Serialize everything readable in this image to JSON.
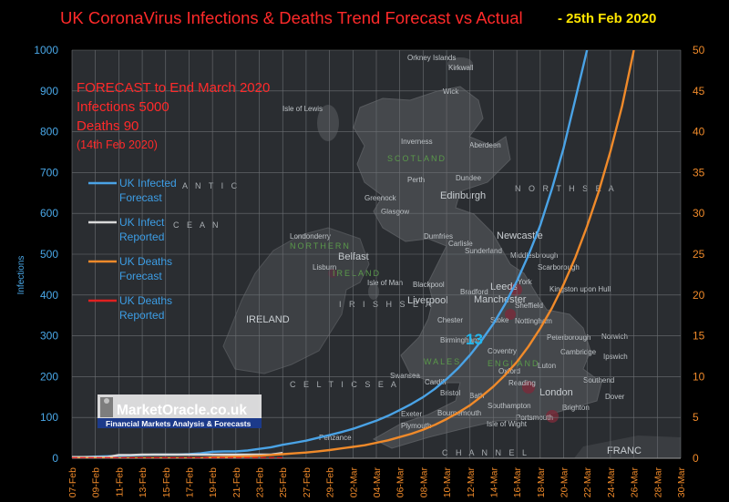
{
  "title": "UK CoronaVirus Infections & Deaths Trend Forecast vs Actual",
  "title_date": "- 25th Feb 2020",
  "forecast_box": {
    "heading": "FORECAST to End March 2020",
    "infections": "Infections  5000",
    "deaths": "Deaths 90",
    "date": "(14th Feb 2020)"
  },
  "logo": {
    "name": "MarketOracle.co.uk",
    "tagline": "Financial Markets Analysis & Forecasts"
  },
  "marker_label": "13",
  "map_labels": {
    "orkney": "Orkney Islands",
    "kirkwall": "Kirkwall",
    "wick": "Wick",
    "isle_of_lewis": "Isle of Lewis",
    "inverness": "Inverness",
    "aberdeen": "Aberdeen",
    "scotland": "SCOTLAND",
    "perth": "Perth",
    "dundee": "Dundee",
    "edinburgh": "Edinburgh",
    "greenock": "Greenock",
    "glasgow": "Glasgow",
    "north_sea": "N O R T H   S E A",
    "dumfries": "Dumfries",
    "carlisle": "Carlisle",
    "newcastle": "Newcastle",
    "sunderland": "Sunderland",
    "middlesbrough": "Middlesbrough",
    "londonderry": "Londonderry",
    "northern": "NORTHERN",
    "belfast": "Belfast",
    "lisburn": "Lisburn",
    "ireland_ni": "IRELAND",
    "scarborough": "Scarborough",
    "york": "York",
    "leeds": "Leeds",
    "bradford": "Bradford",
    "kingston": "Kingston upon Hull",
    "isle_of_man": "Isle of Man",
    "blackpool": "Blackpool",
    "manchester": "Manchester",
    "sheffield": "Sheffield",
    "irish_sea": "I R I S H  S E A",
    "liverpool": "Liverpool",
    "ireland": "IRELAND",
    "chester": "Chester",
    "stoke": "Stoke",
    "nottingham": "Nottingham",
    "norwich": "Norwich",
    "birmingham": "Birmingham",
    "peterborough": "Peterborough",
    "coventry": "Coventry",
    "cambridge": "Cambridge",
    "ipswich": "Ipswich",
    "wales": "WALES",
    "england": "ENGLAND",
    "luton": "Luton",
    "oxford": "Oxford",
    "swansea": "Swansea",
    "celtic_sea": "C E L T I C  S E A",
    "cardiff": "Cardiff",
    "bristol": "Bristol",
    "bath": "Bath",
    "reading": "Reading",
    "london": "London",
    "southend": "Southend",
    "dover": "Dover",
    "southampton": "Southampton",
    "exeter": "Exeter",
    "bournemouth": "Bournemouth",
    "brighton": "Brighton",
    "isle_of_wight": "Isle of Wight",
    "portsmouth": "Portsmouth",
    "plymouth": "Plymouth",
    "penzance": "Penzance",
    "channel": "C H A N N E L",
    "france": "FRANC",
    "atlantic": "A N T I C",
    "ocean": "C E A N"
  },
  "chart_data": {
    "type": "line",
    "x": [
      "07-Feb",
      "08-Feb",
      "09-Feb",
      "10-Feb",
      "11-Feb",
      "12-Feb",
      "13-Feb",
      "14-Feb",
      "15-Feb",
      "16-Feb",
      "17-Feb",
      "18-Feb",
      "19-Feb",
      "20-Feb",
      "21-Feb",
      "22-Feb",
      "23-Feb",
      "24-Feb",
      "25-Feb",
      "26-Feb",
      "27-Feb",
      "28-Feb",
      "29-Feb",
      "01-Mar",
      "02-Mar",
      "03-Mar",
      "04-Mar",
      "05-Mar",
      "06-Mar",
      "07-Mar",
      "08-Mar",
      "09-Mar",
      "10-Mar",
      "11-Mar",
      "12-Mar",
      "13-Mar",
      "14-Mar",
      "15-Mar",
      "16-Mar",
      "17-Mar",
      "18-Mar",
      "19-Mar",
      "20-Mar",
      "21-Mar",
      "22-Mar",
      "23-Mar",
      "24-Mar",
      "25-Mar",
      "26-Mar",
      "27-Mar",
      "28-Mar",
      "29-Mar",
      "30-Mar"
    ],
    "x_tick_labels": [
      "07-Feb",
      "09-Feb",
      "11-Feb",
      "13-Feb",
      "15-Feb",
      "17-Feb",
      "19-Feb",
      "21-Feb",
      "23-Feb",
      "25-Feb",
      "27-Feb",
      "29-Feb",
      "02-Mar",
      "04-Mar",
      "06-Mar",
      "08-Mar",
      "10-Mar",
      "12-Mar",
      "14-Mar",
      "16-Mar",
      "18-Mar",
      "20-Mar",
      "22-Mar",
      "24-Mar",
      "26-Mar",
      "28-Mar",
      "30-Mar"
    ],
    "ylabel": "Infections",
    "ylim": [
      0,
      1000
    ],
    "y_ticks": [
      0,
      100,
      200,
      300,
      400,
      500,
      600,
      700,
      800,
      900,
      1000
    ],
    "y2lim": [
      0,
      50
    ],
    "y2_ticks": [
      0,
      5,
      10,
      15,
      20,
      25,
      30,
      35,
      40,
      45,
      50
    ],
    "grid": true,
    "legend_position": "left",
    "series": [
      {
        "name": "UK Infected Forecast",
        "axis": "left",
        "color": "#4aa3e6",
        "values": [
          3,
          3,
          4,
          5,
          6,
          7,
          8,
          9,
          9,
          9,
          10,
          12,
          16,
          17,
          17,
          19,
          23,
          27,
          33,
          38,
          43,
          50,
          57,
          64,
          72,
          82,
          92,
          104,
          118,
          133,
          150,
          170,
          194,
          221,
          253,
          289,
          330,
          378,
          434,
          498,
          570,
          660,
          760,
          880,
          1000,
          null,
          null,
          null,
          null,
          null,
          null,
          null,
          null
        ]
      },
      {
        "name": "UK Infect Reported",
        "axis": "left",
        "color": "#d9d9d9",
        "values": [
          3,
          3,
          3,
          3,
          8,
          8,
          9,
          9,
          9,
          9,
          9,
          9,
          9,
          9,
          9,
          9,
          9,
          9,
          13,
          null,
          null,
          null,
          null,
          null,
          null,
          null,
          null,
          null,
          null,
          null,
          null,
          null,
          null,
          null,
          null,
          null,
          null,
          null,
          null,
          null,
          null,
          null,
          null,
          null,
          null,
          null,
          null,
          null,
          null,
          null,
          null,
          null,
          null
        ]
      },
      {
        "name": "UK Deaths Forecast",
        "axis": "right",
        "color": "#f08a2a",
        "values": [
          0,
          0,
          0,
          0,
          0,
          0,
          0,
          0,
          0,
          0,
          0,
          0,
          0.1,
          0.15,
          0.2,
          0.25,
          0.3,
          0.4,
          0.5,
          0.6,
          0.7,
          0.85,
          1.0,
          1.2,
          1.4,
          1.6,
          1.9,
          2.2,
          2.6,
          3.0,
          3.5,
          4.1,
          4.8,
          5.6,
          6.5,
          7.6,
          8.8,
          10.2,
          11.8,
          13.7,
          15.9,
          18.4,
          21.3,
          24.6,
          28.4,
          32.7,
          37.6,
          43.2,
          50,
          null,
          null,
          null,
          null
        ]
      },
      {
        "name": "UK Deaths Reported",
        "axis": "right",
        "color": "#e02020",
        "values": [
          0,
          0,
          0,
          0,
          0,
          0,
          0,
          0,
          0,
          0,
          0,
          0,
          0,
          0,
          0,
          0,
          0,
          0,
          0,
          null,
          null,
          null,
          null,
          null,
          null,
          null,
          null,
          null,
          null,
          null,
          null,
          null,
          null,
          null,
          null,
          null,
          null,
          null,
          null,
          null,
          null,
          null,
          null,
          null,
          null,
          null,
          null,
          null,
          null,
          null,
          null,
          null,
          null
        ]
      }
    ],
    "annotations": [
      {
        "text": "13",
        "x": "25-Feb",
        "color": "#22b8f0"
      }
    ]
  }
}
